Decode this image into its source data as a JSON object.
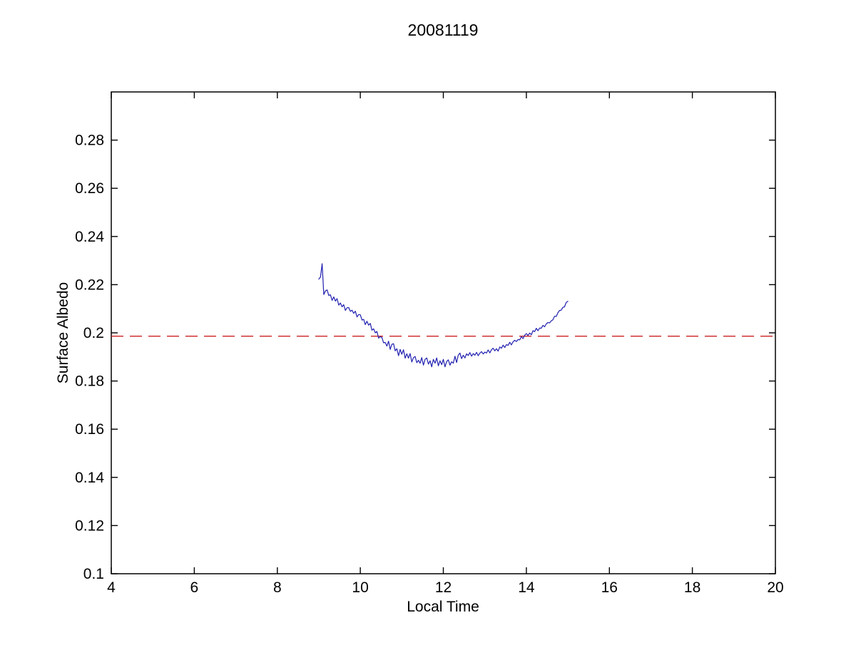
{
  "figure": {
    "background_color": "#ffffff"
  },
  "chart_data": {
    "type": "line",
    "title": "20081119",
    "xlabel": "Local Time",
    "ylabel": "Surface Albedo",
    "xlim": [
      4,
      20
    ],
    "ylim": [
      0.1,
      0.3
    ],
    "xticks": [
      4,
      6,
      8,
      10,
      12,
      14,
      16,
      18,
      20
    ],
    "xtick_labels": [
      "4",
      "6",
      "8",
      "10",
      "12",
      "14",
      "16",
      "18",
      "20"
    ],
    "yticks": [
      0.1,
      0.12,
      0.14,
      0.16,
      0.18,
      0.2,
      0.22,
      0.24,
      0.26,
      0.28
    ],
    "ytick_labels": [
      "0.1",
      "0.12",
      "0.14",
      "0.16",
      "0.18",
      "0.2",
      "0.22",
      "0.24",
      "0.26",
      "0.28"
    ],
    "grid": false,
    "legend": null,
    "box": true,
    "axis_color": "#000000",
    "series": [
      {
        "name": "surface albedo vs local time",
        "color": "#2121b0",
        "style": "solid",
        "x_start": 9.0,
        "x_step": 0.04,
        "values": [
          0.2223,
          0.2232,
          0.2287,
          0.2159,
          0.2174,
          0.2178,
          0.2155,
          0.2158,
          0.2135,
          0.2149,
          0.2132,
          0.2142,
          0.2115,
          0.2124,
          0.2108,
          0.2117,
          0.2093,
          0.2104,
          0.2105,
          0.2089,
          0.2094,
          0.2081,
          0.209,
          0.2066,
          0.2076,
          0.2075,
          0.2053,
          0.2056,
          0.2034,
          0.2048,
          0.2032,
          0.2039,
          0.2011,
          0.2017,
          0.2,
          0.2006,
          0.1978,
          0.1984,
          0.1981,
          0.1959,
          0.196,
          0.1945,
          0.1965,
          0.1931,
          0.1952,
          0.1955,
          0.1925,
          0.1934,
          0.1905,
          0.1931,
          0.1911,
          0.193,
          0.1895,
          0.1913,
          0.1895,
          0.1914,
          0.1879,
          0.1897,
          0.1902,
          0.1876,
          0.1886,
          0.1874,
          0.1897,
          0.1866,
          0.189,
          0.1896,
          0.187,
          0.1884,
          0.1859,
          0.189,
          0.1874,
          0.1896,
          0.1863,
          0.1884,
          0.1868,
          0.189,
          0.1859,
          0.1881,
          0.1888,
          0.1866,
          0.188,
          0.1874,
          0.1903,
          0.1877,
          0.1907,
          0.1916,
          0.1893,
          0.1907,
          0.1896,
          0.1913,
          0.1906,
          0.1918,
          0.1903,
          0.1914,
          0.1907,
          0.1919,
          0.1905,
          0.1916,
          0.1922,
          0.1912,
          0.192,
          0.1916,
          0.1929,
          0.1917,
          0.193,
          0.1936,
          0.1925,
          0.1934,
          0.1924,
          0.1941,
          0.1936,
          0.1949,
          0.1939,
          0.1951,
          0.1948,
          0.1961,
          0.195,
          0.1963,
          0.1969,
          0.1964,
          0.1972,
          0.1971,
          0.1984,
          0.1976,
          0.199,
          0.1997,
          0.1989,
          0.1999,
          0.1992,
          0.2009,
          0.2005,
          0.2019,
          0.2009,
          0.202,
          0.2019,
          0.2031,
          0.2025,
          0.2037,
          0.2043,
          0.2041,
          0.205,
          0.2054,
          0.2069,
          0.2068,
          0.2083,
          0.2093,
          0.2094,
          0.2106,
          0.2108,
          0.2126,
          0.2131
        ]
      }
    ],
    "reference_line": {
      "name": "mean albedo reference",
      "color": "#cc2222",
      "style": "dashed",
      "y": 0.1986
    }
  }
}
